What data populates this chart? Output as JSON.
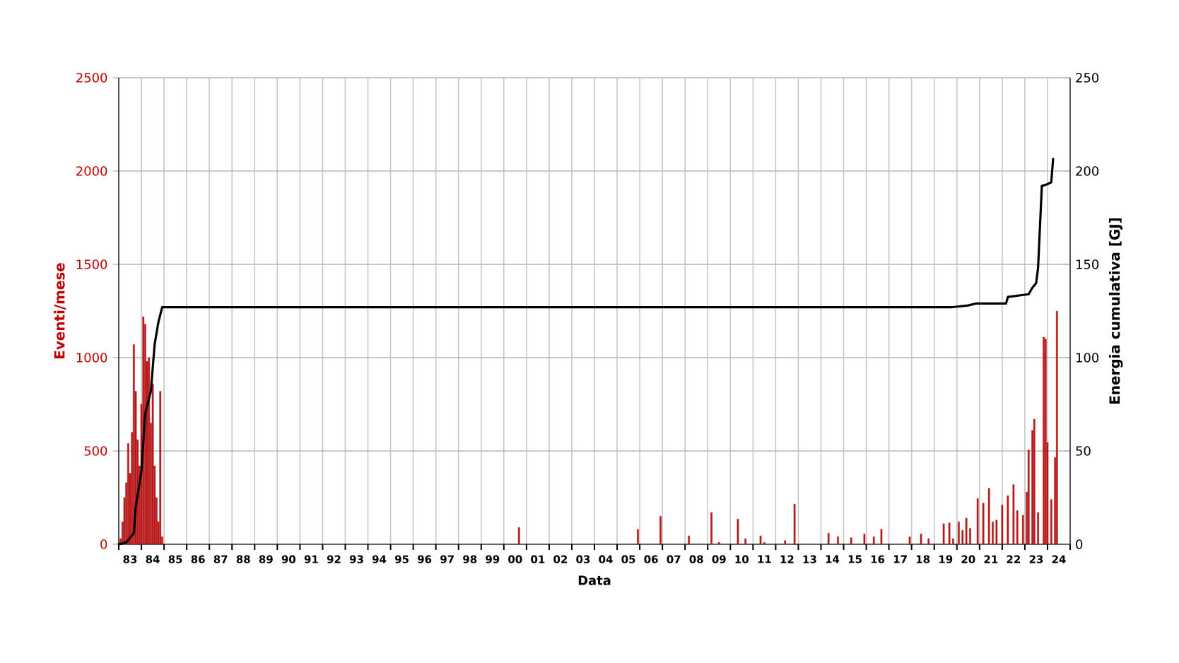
{
  "chart_data": {
    "type": "bar",
    "xlabel": "Data",
    "ylabel": "Eventi/mese",
    "y2label": "Energia cumulativa [GJ]",
    "xlim": [
      "1983",
      "2025"
    ],
    "ylim": [
      0,
      2500
    ],
    "yticks": [
      0,
      500,
      1000,
      1500,
      2000,
      2500
    ],
    "y2lim": [
      0,
      250
    ],
    "y2ticks": [
      0,
      50,
      100,
      150,
      200,
      250
    ],
    "grid": true,
    "xticks": [
      {
        "value": "1983",
        "label": null
      },
      {
        "value": "1983-07",
        "label": "83"
      },
      {
        "value": "1984",
        "label": null
      },
      {
        "value": "1984-07",
        "label": "84"
      },
      {
        "value": "1985",
        "label": null
      },
      {
        "value": "1985-07",
        "label": "85"
      },
      {
        "value": "1986",
        "label": null
      },
      {
        "value": "1986-07",
        "label": "86"
      },
      {
        "value": "1987",
        "label": null
      },
      {
        "value": "1987-07",
        "label": "87"
      },
      {
        "value": "1988",
        "label": null
      },
      {
        "value": "1988-07",
        "label": "88"
      },
      {
        "value": "1989",
        "label": null
      },
      {
        "value": "1989-07",
        "label": "89"
      },
      {
        "value": "1990",
        "label": null
      },
      {
        "value": "1990-07",
        "label": "90"
      },
      {
        "value": "1991",
        "label": null
      },
      {
        "value": "1991-07",
        "label": "91"
      },
      {
        "value": "1992",
        "label": null
      },
      {
        "value": "1992-07",
        "label": "92"
      },
      {
        "value": "1993",
        "label": null
      },
      {
        "value": "1993-07",
        "label": "93"
      },
      {
        "value": "1994",
        "label": null
      },
      {
        "value": "1994-07",
        "label": "94"
      },
      {
        "value": "1995",
        "label": null
      },
      {
        "value": "1995-07",
        "label": "95"
      },
      {
        "value": "1996",
        "label": null
      },
      {
        "value": "1996-07",
        "label": "96"
      },
      {
        "value": "1997",
        "label": null
      },
      {
        "value": "1997-07",
        "label": "97"
      },
      {
        "value": "1998",
        "label": null
      },
      {
        "value": "1998-07",
        "label": "98"
      },
      {
        "value": "1999",
        "label": null
      },
      {
        "value": "1999-07",
        "label": "99"
      },
      {
        "value": "2000",
        "label": null
      },
      {
        "value": "2000-07",
        "label": "00"
      },
      {
        "value": "2001",
        "label": null
      },
      {
        "value": "2001-07",
        "label": "01"
      },
      {
        "value": "2002",
        "label": null
      },
      {
        "value": "2002-07",
        "label": "02"
      },
      {
        "value": "2003",
        "label": null
      },
      {
        "value": "2003-07",
        "label": "03"
      },
      {
        "value": "2004",
        "label": null
      },
      {
        "value": "2004-07",
        "label": "04"
      },
      {
        "value": "2005",
        "label": null
      },
      {
        "value": "2005-07",
        "label": "05"
      },
      {
        "value": "2006",
        "label": null
      },
      {
        "value": "2006-07",
        "label": "06"
      },
      {
        "value": "2007",
        "label": null
      },
      {
        "value": "2007-07",
        "label": "07"
      },
      {
        "value": "2008",
        "label": null
      },
      {
        "value": "2008-07",
        "label": "08"
      },
      {
        "value": "2009",
        "label": null
      },
      {
        "value": "2009-07",
        "label": "09"
      },
      {
        "value": "2010",
        "label": null
      },
      {
        "value": "2010-07",
        "label": "10"
      },
      {
        "value": "2011",
        "label": null
      },
      {
        "value": "2011-07",
        "label": "11"
      },
      {
        "value": "2012",
        "label": null
      },
      {
        "value": "2012-07",
        "label": "12"
      },
      {
        "value": "2013",
        "label": null
      },
      {
        "value": "2013-07",
        "label": "13"
      },
      {
        "value": "2014",
        "label": null
      },
      {
        "value": "2014-07",
        "label": "14"
      },
      {
        "value": "2015",
        "label": null
      },
      {
        "value": "2015-07",
        "label": "15"
      },
      {
        "value": "2016",
        "label": null
      },
      {
        "value": "2016-07",
        "label": "16"
      },
      {
        "value": "2017",
        "label": null
      },
      {
        "value": "2017-07",
        "label": "17"
      },
      {
        "value": "2018",
        "label": null
      },
      {
        "value": "2018-07",
        "label": "18"
      },
      {
        "value": "2019",
        "label": null
      },
      {
        "value": "2019-07",
        "label": "19"
      },
      {
        "value": "2020",
        "label": null
      },
      {
        "value": "2020-07",
        "label": "20"
      },
      {
        "value": "2021",
        "label": null
      },
      {
        "value": "2021-07",
        "label": "21"
      },
      {
        "value": "2022",
        "label": null
      },
      {
        "value": "2022-07",
        "label": "22"
      },
      {
        "value": "2023",
        "label": null
      },
      {
        "value": "2023-07",
        "label": "23"
      },
      {
        "value": "2024",
        "label": null
      },
      {
        "value": "2024-07",
        "label": "24"
      },
      {
        "value": "2025",
        "label": null
      }
    ],
    "series": [
      {
        "color": "#c81414",
        "x": [
          "1983-01",
          "1983-02",
          "1983-03",
          "1983-04",
          "1983-05",
          "1983-06",
          "1983-07",
          "1983-08",
          "1983-09",
          "1983-10",
          "1983-11",
          "1983-12",
          "1984-01",
          "1984-02",
          "1984-03",
          "1984-04",
          "1984-05",
          "1984-06",
          "1984-07",
          "1984-08",
          "1984-09",
          "1984-10",
          "1984-11",
          "1984-12",
          "2000-09",
          "2005-12",
          "2006-12",
          "2008-03",
          "2009-03",
          "2009-07",
          "2010-05",
          "2010-09",
          "2011-05",
          "2011-07",
          "2012-06",
          "2012-11",
          "2014-05",
          "2014-10",
          "2015-05",
          "2015-12",
          "2016-05",
          "2016-09",
          "2017-12",
          "2018-06",
          "2018-10",
          "2019-06",
          "2019-09",
          "2019-11",
          "2020-02",
          "2020-04",
          "2020-06",
          "2020-08",
          "2020-12",
          "2021-03",
          "2021-06",
          "2021-08",
          "2021-10",
          "2022-01",
          "2022-04",
          "2022-07",
          "2022-09",
          "2022-12",
          "2023-02",
          "2023-03",
          "2023-05",
          "2023-06",
          "2023-08",
          "2023-11",
          "2023-12",
          "2024-01",
          "2024-03",
          "2024-05",
          "2024-06"
        ],
        "values": [
          10,
          30,
          120,
          250,
          330,
          540,
          380,
          600,
          1070,
          820,
          560,
          420,
          750,
          1220,
          1180,
          980,
          1000,
          650,
          860,
          420,
          250,
          120,
          820,
          40,
          90,
          80,
          150,
          45,
          170,
          10,
          135,
          30,
          45,
          10,
          20,
          215,
          60,
          40,
          35,
          55,
          40,
          80,
          40,
          55,
          30,
          110,
          115,
          30,
          120,
          75,
          140,
          85,
          245,
          220,
          300,
          120,
          130,
          210,
          260,
          320,
          180,
          155,
          280,
          505,
          610,
          670,
          170,
          1110,
          1100,
          545,
          240,
          465,
          1250
        ]
      },
      {
        "type": "line",
        "axis": "y2",
        "color": "#000000",
        "x": [
          "1983-01",
          "1983-05",
          "1983-09",
          "1983-10",
          "1984-01",
          "1984-03",
          "1984-06",
          "1984-08",
          "1984-10",
          "1984-12",
          "2019-10",
          "2020-07",
          "2020-11",
          "2022-03",
          "2022-04",
          "2023-03",
          "2023-05",
          "2023-07",
          "2023-08",
          "2023-10",
          "2024-01",
          "2024-03",
          "2024-04"
        ],
        "values": [
          0,
          1,
          6,
          20,
          39,
          70,
          82,
          107,
          119,
          127,
          127,
          128,
          129,
          129,
          132.5,
          134,
          137.5,
          140,
          148,
          192,
          193,
          194,
          207
        ]
      }
    ]
  }
}
